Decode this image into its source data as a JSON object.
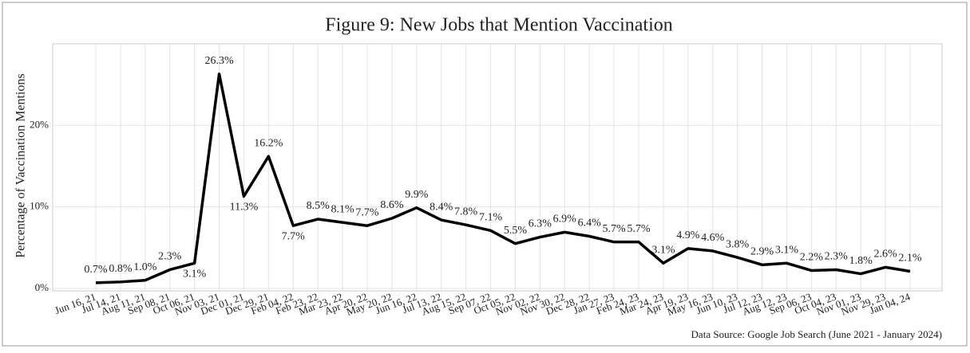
{
  "chart_data": {
    "type": "line",
    "title": "Figure 9: New Jobs that Mention Vaccination",
    "y_label": "Percentage of Vaccination Mentions",
    "source": "Data Source: Google Job Search (June 2021 - January 2024)",
    "categories": [
      "Jun 16, 21",
      "Jul 14, 21",
      "Aug 11, 21",
      "Sep 08, 21",
      "Oct 06, 21",
      "Nov 03, 21",
      "Dec 01, 21",
      "Dec 29, 21",
      "Feb 04, 22",
      "Feb 23, 22",
      "Mar 23, 22",
      "Apr 20, 22",
      "May 20, 22",
      "Jun 16, 22",
      "Jul 13, 22",
      "Aug 15, 22",
      "Sep 07, 22",
      "Oct 05, 22",
      "Nov 02, 22",
      "Nov 30, 22",
      "Dec 28, 22",
      "Jan 27, 23",
      "Feb 24, 23",
      "Mar 24, 23",
      "Apr 19, 23",
      "May 16, 23",
      "Jun 10, 23",
      "Jul 12, 23",
      "Aug 12, 23",
      "Sep 06, 23",
      "Oct 04, 23",
      "Nov 01, 23",
      "Nov 29, 23",
      "Jan 04, 24"
    ],
    "values": [
      0.7,
      0.8,
      1.0,
      2.3,
      3.1,
      26.3,
      11.3,
      16.2,
      7.7,
      8.5,
      8.1,
      7.7,
      8.6,
      9.9,
      8.4,
      7.8,
      7.1,
      5.5,
      6.3,
      6.9,
      6.4,
      5.7,
      5.7,
      3.1,
      4.9,
      4.6,
      3.8,
      2.9,
      3.1,
      2.2,
      2.3,
      1.8,
      2.6,
      2.1
    ],
    "value_labels": [
      "0.7%",
      "0.8%",
      "1.0%",
      "2.3%",
      "3.1%",
      "26.3%",
      "11.3%",
      "16.2%",
      "7.7%",
      "8.5%",
      "8.1%",
      "7.7%",
      "8.6%",
      "9.9%",
      "8.4%",
      "7.8%",
      "7.1%",
      "5.5%",
      "6.3%",
      "6.9%",
      "6.4%",
      "5.7%",
      "5.7%",
      "3.1%",
      "4.9%",
      "4.6%",
      "3.8%",
      "2.9%",
      "3.1%",
      "2.2%",
      "2.3%",
      "1.8%",
      "2.6%",
      "2.1%"
    ],
    "color": "#000000",
    "ylim": [
      0,
      30
    ],
    "yticks": [
      {
        "value": 0,
        "label": "0%"
      },
      {
        "value": 10,
        "label": "10%"
      },
      {
        "value": 20,
        "label": "20%"
      }
    ],
    "grid": true
  }
}
